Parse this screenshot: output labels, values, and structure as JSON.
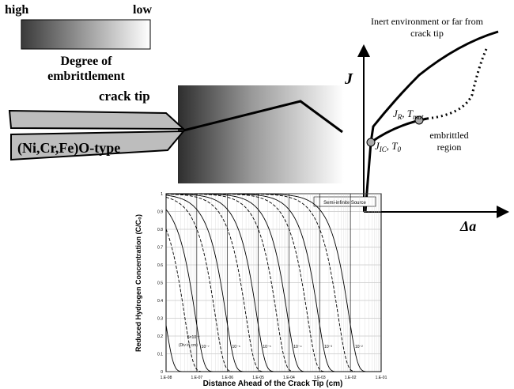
{
  "scale_bar": {
    "high": "high",
    "low": "low",
    "caption": [
      "Degree of",
      "embrittlement"
    ]
  },
  "crack": {
    "tip_label": "crack tip",
    "oxide_label": "(Ni,Cr,Fe)O-type"
  },
  "resistance_plot": {
    "y_label": "J",
    "x_label": "Δa",
    "inert_label": [
      "Inert environment or far from",
      "crack tip"
    ],
    "jr_label": [
      "J",
      "R",
      ", ",
      "T",
      "mat"
    ],
    "jic_label": [
      "J",
      "IC",
      ", ",
      "T",
      "0"
    ],
    "region_label": [
      "embrittled",
      "region"
    ]
  },
  "concentration_plot": {
    "x_label": "Distance Ahead of the Crack Tip (cm)",
    "y_label": "Reduced Hydrogen Concentration (C/C₀)",
    "legend": "Semi-infinite Source",
    "div_note": "(Div in cm)",
    "curve_labels": [
      "5×10⁻⁷",
      "10⁻⁷",
      "10⁻⁶",
      "10⁻⁵",
      "10⁻⁴",
      "10⁻³",
      "10⁻²"
    ],
    "xticks": [
      "1.E-08",
      "1.E-07",
      "1.E-06",
      "1.E-05",
      "1.E-04",
      "1.E-03",
      "1.E-02",
      "1.E-01"
    ],
    "yticks": [
      0,
      0.1,
      0.2,
      0.3,
      0.4,
      0.5,
      0.6,
      0.7,
      0.8,
      0.9,
      1
    ]
  }
}
